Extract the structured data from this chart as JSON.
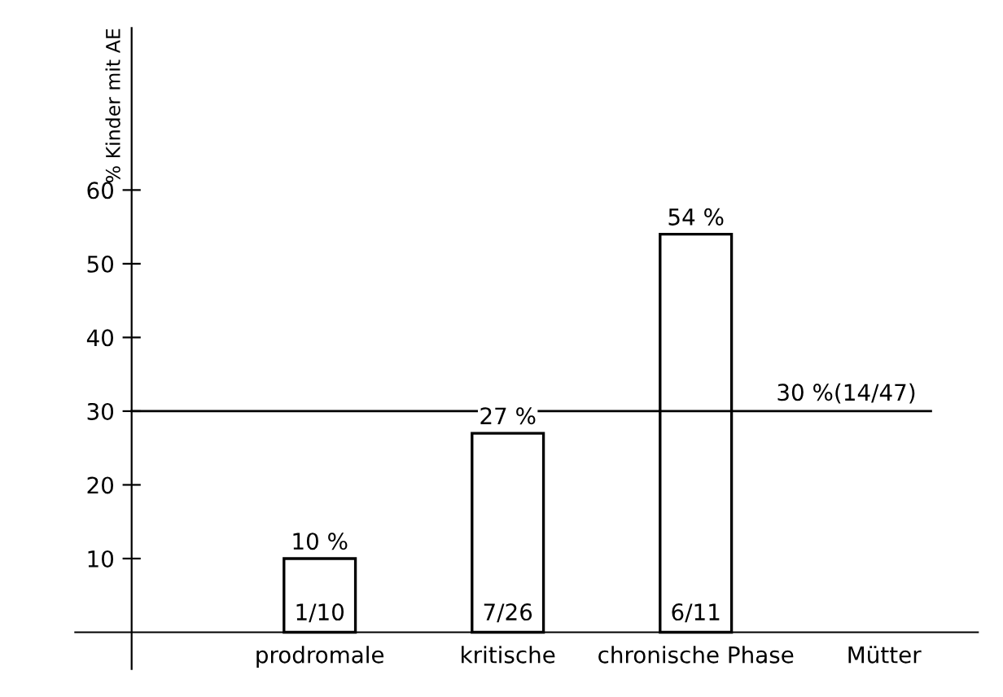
{
  "chart_data": {
    "type": "bar",
    "ylabel": "% Kinder mit AE",
    "categories": [
      "prodromale",
      "kritische",
      "chronische Phase",
      "Mütter"
    ],
    "values": [
      10,
      27,
      54,
      null
    ],
    "color": "#ffffff",
    "value_labels": [
      "10 %",
      "27 %",
      "54 %",
      null
    ],
    "annotations": [
      "1/10",
      "7/26",
      "6/11"
    ],
    "ref_lines": [
      {
        "axis": "y",
        "value": 30,
        "label": "30 %(14/47)",
        "color": "#000000"
      }
    ],
    "ylim": [
      -5,
      82
    ],
    "yticks": [
      10,
      20,
      30,
      40,
      50,
      60
    ],
    "grid": false,
    "legend": false
  }
}
